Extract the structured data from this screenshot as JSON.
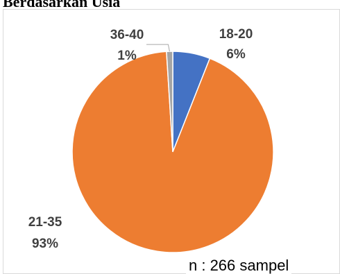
{
  "heading": "Berdasarkan Usia",
  "note": "n : 266 sampel",
  "chart_data": {
    "type": "pie",
    "title": "",
    "start_angle_deg": 0,
    "direction": "clockwise",
    "slices": [
      {
        "category": "18-20",
        "percent_label": "6%",
        "value": 6,
        "color": "#4472C4"
      },
      {
        "category": "21-35",
        "percent_label": "93%",
        "value": 93,
        "color": "#ED7D31"
      },
      {
        "category": "36-40",
        "percent_label": "1%",
        "value": 1,
        "color": "#A5A5A5"
      }
    ],
    "data_labels": "category and percent, bold, outside",
    "legend": "none"
  }
}
